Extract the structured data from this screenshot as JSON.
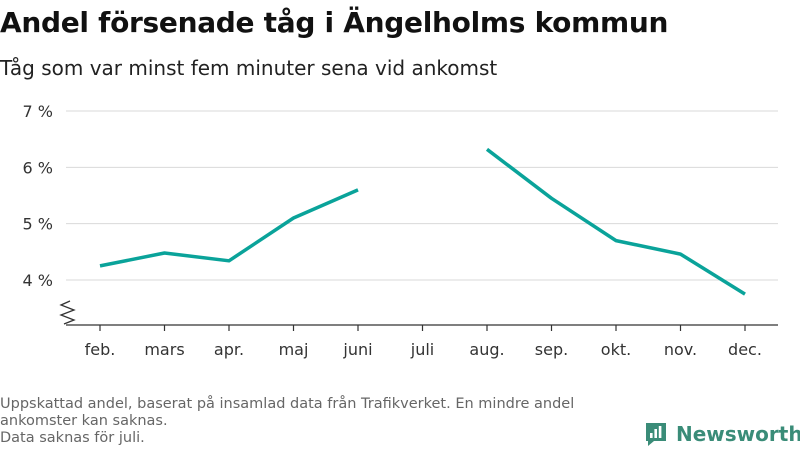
{
  "title": "Andel försenade tåg i Ängelholms kommun",
  "subtitle": "Tåg som var minst fem minuter sena vid ankomst",
  "footnote": {
    "line1": "Uppskattad andel, baserat på insamlad data från Trafikverket. En mindre andel ankomster kan saknas.",
    "line2": "Data saknas för juli."
  },
  "brand": {
    "name": "Newsworthy",
    "icon": "newsworthy-logo-icon",
    "color": "#3a8c78"
  },
  "chart_data": {
    "type": "line",
    "title": "Andel försenade tåg i Ängelholms kommun",
    "subtitle": "Tåg som var minst fem minuter sena vid ankomst",
    "categories": [
      "feb.",
      "mars",
      "apr.",
      "maj",
      "juni",
      "juli",
      "aug.",
      "sep.",
      "okt.",
      "nov.",
      "dec."
    ],
    "series": [
      {
        "values": [
          4.25,
          4.48,
          4.34,
          5.1,
          5.6,
          null,
          6.32,
          5.45,
          4.7,
          4.46,
          3.75
        ]
      }
    ],
    "y_ticks": [
      4,
      5,
      6,
      7
    ],
    "y_tick_labels": [
      "4 %",
      "5 %",
      "6 %",
      "7 %"
    ],
    "ylim": [
      3.3,
      7
    ],
    "y_axis_break": true,
    "grid": "horizontal",
    "line_color": "#0aa39a"
  }
}
